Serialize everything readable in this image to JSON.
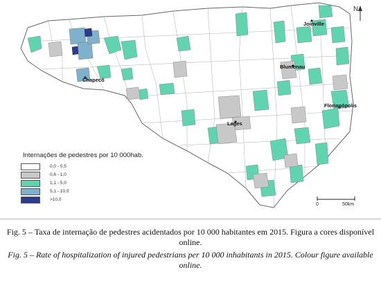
{
  "legend": {
    "title": "Internações de pedestres por 10 000hab.",
    "classes": [
      {
        "label": "0,0 - 0,5",
        "color": "#ffffff"
      },
      {
        "label": "0,6 - 1,0",
        "color": "#c8c8c8"
      },
      {
        "label": "1,1 - 5,0",
        "color": "#5fd4ae"
      },
      {
        "label": "5,1 - 10,0",
        "color": "#7fb0cc"
      },
      {
        "label": ">10,0",
        "color": "#2a3a8f"
      }
    ]
  },
  "cities": {
    "joinville": "Joinville",
    "blumenau": "Blumenau",
    "chapeco": "Chapecó",
    "florianopolis": "Florianópolis",
    "lages": "Lages"
  },
  "scale": {
    "start": "0",
    "end": "50km"
  },
  "north_label": "N",
  "caption": {
    "pt": "Fig. 5 – Taxa de internação de pedestres acidentados por 10 000 habitantes em 2015. Figura a cores disponível online.",
    "en": "Fig. 5 – Rate of hospitalization of injured pedestrians per 10 000 inhabitants in 2015. Colour figure available online."
  }
}
